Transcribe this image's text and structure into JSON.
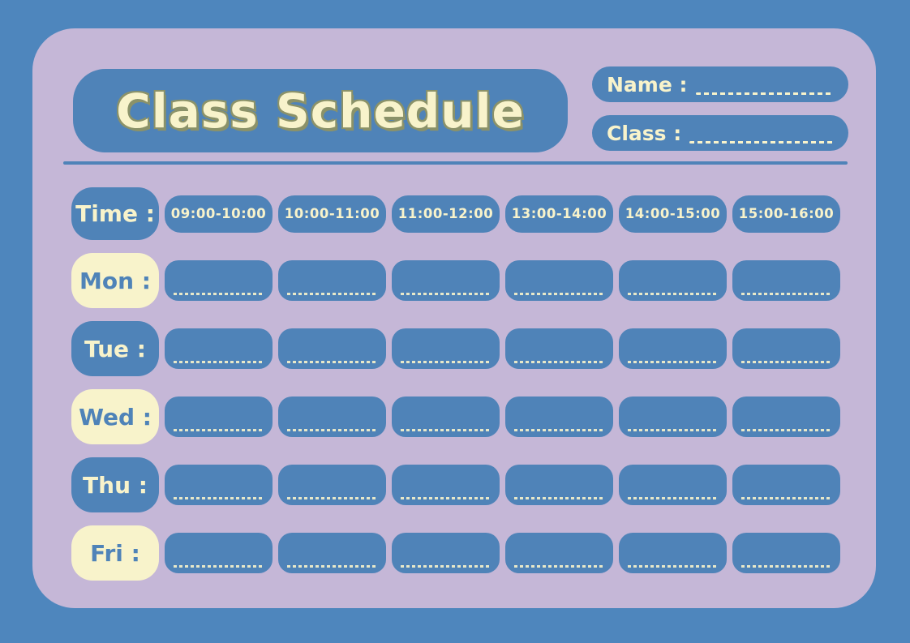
{
  "header": {
    "title": "Class Schedule",
    "name_label": "Name :",
    "class_label": "Class :"
  },
  "schedule": {
    "time_label": "Time :",
    "time_slots": [
      "09:00-10:00",
      "10:00-11:00",
      "11:00-12:00",
      "13:00-14:00",
      "14:00-15:00",
      "15:00-16:00"
    ],
    "days": [
      {
        "label": "Mon :",
        "label_style": "cream"
      },
      {
        "label": "Tue :",
        "label_style": "blue"
      },
      {
        "label": "Wed :",
        "label_style": "cream"
      },
      {
        "label": "Thu :",
        "label_style": "blue"
      },
      {
        "label": "Fri :",
        "label_style": "cream"
      }
    ],
    "columns": 6
  },
  "colors": {
    "background_blue": "#4E86BD",
    "card_purple": "#C5B7D7",
    "box_blue": "#4F83B8",
    "cream": "#F8F3CB",
    "title_outline": "#8B9269"
  }
}
